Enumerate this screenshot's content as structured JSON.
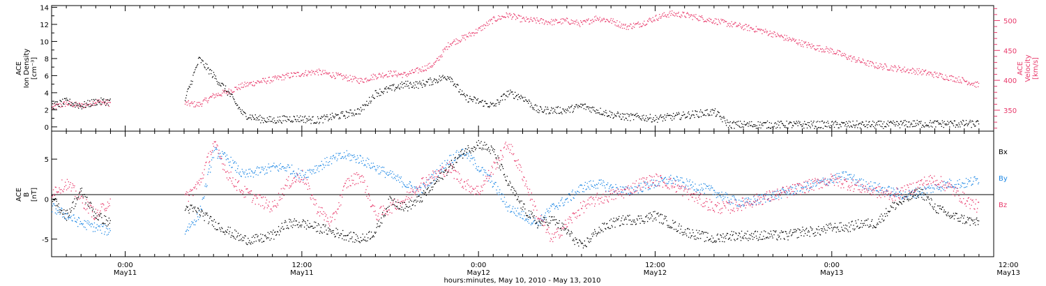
{
  "colors": {
    "black": "#000000",
    "pink": "#e8386a",
    "blue": "#1e88e5"
  },
  "chart_data": [
    {
      "type": "scatter",
      "panel": "top",
      "ylabel_left": [
        "ACE",
        "Ion Density",
        "[cm⁻³]"
      ],
      "ylabel_right": [
        "ACE",
        "Velocity",
        "[km/s]"
      ],
      "ylim_left": [
        -0.5,
        14.2
      ],
      "ylim_right": [
        315,
        525
      ],
      "yticks_left": [
        "0",
        "2",
        "4",
        "6",
        "8",
        "10",
        "12",
        "14"
      ],
      "yticks_left_values": [
        0,
        2,
        4,
        6,
        8,
        10,
        12,
        14
      ],
      "yticks_right": [
        "350",
        "400",
        "450",
        "500"
      ],
      "yticks_right_values": [
        350,
        400,
        450,
        500
      ],
      "xlim_hours": [
        -5,
        59
      ],
      "series": [
        {
          "axis": "left",
          "color": "#000000",
          "x": [
            -5,
            -4,
            -3,
            -2,
            -1,
            4,
            5,
            6,
            7,
            8,
            9,
            10,
            11,
            12,
            13,
            14,
            15,
            16,
            17,
            18,
            19,
            20,
            21,
            22,
            23,
            24,
            25,
            26,
            27,
            28,
            29,
            30,
            31,
            32,
            33,
            34,
            35,
            36,
            37,
            38,
            39,
            40,
            41,
            42,
            43,
            44,
            45,
            46,
            47,
            48,
            49,
            50,
            51,
            52,
            53,
            54,
            55,
            56,
            57,
            58
          ],
          "y": [
            2.5,
            3,
            2.5,
            3,
            3,
            3,
            8,
            6,
            4,
            1.5,
            1,
            0.8,
            1,
            1,
            0.8,
            1.2,
            1.5,
            2,
            4,
            4.5,
            5,
            5,
            5.5,
            6,
            3.5,
            3,
            2.5,
            4,
            3.5,
            2,
            2,
            2,
            2.5,
            2,
            1.5,
            1.2,
            1.2,
            1,
            1.2,
            1.4,
            1.6,
            1.8,
            0.3,
            0.3,
            0.3,
            0.3,
            0.3,
            0.3,
            0.3,
            0.3,
            0.3,
            0.3,
            0.3,
            0.3,
            0.4,
            0.4,
            0.4,
            0.4,
            0.4,
            0.4
          ]
        },
        {
          "axis": "right",
          "color": "#e8386a",
          "x": [
            -5,
            -4,
            -3,
            -2,
            -1,
            4,
            5,
            6,
            7,
            8,
            9,
            10,
            11,
            12,
            13,
            14,
            15,
            16,
            17,
            18,
            19,
            20,
            21,
            22,
            23,
            24,
            25,
            26,
            27,
            28,
            29,
            30,
            31,
            32,
            33,
            34,
            35,
            36,
            37,
            38,
            39,
            40,
            41,
            42,
            43,
            44,
            45,
            46,
            47,
            48,
            49,
            50,
            51,
            52,
            53,
            54,
            55,
            56,
            57,
            58
          ],
          "y": [
            355,
            362,
            358,
            365,
            362,
            362,
            360,
            375,
            382,
            392,
            398,
            402,
            408,
            412,
            415,
            410,
            405,
            400,
            408,
            412,
            410,
            418,
            428,
            462,
            472,
            485,
            502,
            510,
            502,
            500,
            498,
            500,
            495,
            505,
            500,
            490,
            495,
            505,
            512,
            510,
            505,
            500,
            495,
            490,
            485,
            478,
            470,
            462,
            455,
            450,
            440,
            432,
            425,
            422,
            418,
            415,
            410,
            405,
            400,
            392
          ]
        }
      ]
    },
    {
      "type": "scatter",
      "panel": "bottom",
      "ylabel_left": [
        "ACE",
        "B",
        "[nT]"
      ],
      "ylim": [
        -7.2,
        8.5
      ],
      "yticks": [
        "-5",
        "0",
        "5"
      ],
      "yticks_values": [
        -5,
        0,
        5
      ],
      "xlim_hours": [
        -5,
        59
      ],
      "legend": [
        "Bx",
        "By",
        "Bz"
      ],
      "legend_placement": "right",
      "series": [
        {
          "name": "Bx",
          "color": "#000000",
          "x": [
            -5,
            -4,
            -3,
            -2,
            -1,
            4,
            5,
            6,
            7,
            8,
            9,
            10,
            11,
            12,
            13,
            14,
            15,
            16,
            17,
            18,
            19,
            20,
            21,
            22,
            23,
            24,
            25,
            26,
            27,
            28,
            29,
            30,
            31,
            32,
            33,
            34,
            35,
            36,
            37,
            38,
            39,
            40,
            41,
            42,
            43,
            44,
            45,
            46,
            47,
            48,
            49,
            50,
            51,
            52,
            53,
            54,
            55,
            56,
            57,
            58
          ],
          "y": [
            0,
            -2,
            1,
            -2,
            -3,
            -1,
            -1.5,
            -3,
            -4,
            -5,
            -5,
            -4.5,
            -3,
            -3,
            -3.5,
            -4,
            -4.5,
            -5,
            -4,
            0,
            -1,
            0,
            2,
            4,
            6,
            7,
            6,
            2,
            -1,
            -3,
            -2.5,
            -4,
            -6,
            -4,
            -3,
            -2.5,
            -2.5,
            -2,
            -3,
            -4,
            -4.5,
            -5,
            -4.5,
            -4.5,
            -4.5,
            -4.5,
            -4.5,
            -4,
            -4,
            -3.5,
            -3.5,
            -3,
            -3,
            -1,
            0,
            1,
            -1,
            -2,
            -2.5,
            -3
          ]
        },
        {
          "name": "By",
          "color": "#1e88e5",
          "x": [
            -5,
            -4,
            -3,
            -2,
            -1,
            4,
            5,
            6,
            7,
            8,
            9,
            10,
            11,
            12,
            13,
            14,
            15,
            16,
            17,
            18,
            19,
            20,
            21,
            22,
            23,
            24,
            25,
            26,
            27,
            28,
            29,
            30,
            31,
            32,
            33,
            34,
            35,
            36,
            37,
            38,
            39,
            40,
            41,
            42,
            43,
            44,
            45,
            46,
            47,
            48,
            49,
            50,
            51,
            52,
            53,
            54,
            55,
            56,
            57,
            58
          ],
          "y": [
            -1,
            -2,
            -3,
            -3.5,
            -4,
            -4,
            -2,
            6,
            5,
            3,
            3.5,
            4,
            4,
            3,
            4,
            5,
            5.5,
            5,
            4,
            3,
            2,
            1,
            3,
            5,
            6,
            4,
            2,
            -1,
            -2,
            -3,
            -1,
            0,
            1.5,
            2,
            1.5,
            1,
            1.5,
            2,
            2.5,
            2,
            1.5,
            1,
            0,
            -0.5,
            0,
            0.5,
            1,
            1.5,
            2,
            2.5,
            3,
            2,
            1.5,
            1,
            0.5,
            1,
            1.5,
            2,
            2,
            2.5
          ]
        },
        {
          "name": "Bz",
          "color": "#e8386a",
          "x": [
            -5,
            -4,
            -3,
            -2,
            -1,
            4,
            5,
            6,
            7,
            8,
            9,
            10,
            11,
            12,
            13,
            14,
            15,
            16,
            17,
            18,
            19,
            20,
            21,
            22,
            23,
            24,
            25,
            26,
            27,
            28,
            29,
            30,
            31,
            32,
            33,
            34,
            35,
            36,
            37,
            38,
            39,
            40,
            41,
            42,
            43,
            44,
            45,
            46,
            47,
            48,
            49,
            50,
            51,
            52,
            53,
            54,
            55,
            56,
            57,
            58
          ],
          "y": [
            1,
            2,
            0,
            -2,
            0,
            0,
            2,
            7,
            3,
            1,
            0,
            -1,
            2,
            3,
            -1,
            -3,
            2,
            3,
            -2,
            -1,
            0,
            2,
            3,
            4,
            2,
            1,
            4,
            7,
            3,
            -2,
            -5,
            -3,
            -1,
            0,
            0.5,
            1,
            2,
            2.5,
            2,
            1,
            0,
            -1,
            -1,
            -0.5,
            0,
            0.5,
            1,
            1.5,
            2,
            2.5,
            2,
            1.5,
            1,
            0.5,
            1,
            2,
            2.5,
            1.5,
            0,
            -1
          ]
        }
      ]
    }
  ],
  "xaxis": {
    "ticks": [
      {
        "hour": 0,
        "time": "0:00",
        "date": "May11"
      },
      {
        "hour": 12,
        "time": "12:00",
        "date": "May11"
      },
      {
        "hour": 24,
        "time": "0:00",
        "date": "May12"
      },
      {
        "hour": 36,
        "time": "12:00",
        "date": "May12"
      },
      {
        "hour": 48,
        "time": "0:00",
        "date": "May13"
      },
      {
        "hour": 60,
        "time": "12:00",
        "date": "May13"
      }
    ],
    "title": "hours:minutes, May 10, 2010 - May 13, 2010"
  }
}
